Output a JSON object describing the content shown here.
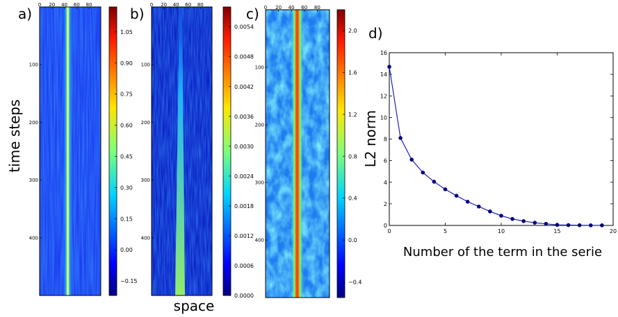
{
  "panels": [
    {
      "label": "a)",
      "ylabel": "time steps",
      "xlabel": "",
      "xticks": [
        "0",
        "20",
        "40",
        "60",
        "80"
      ],
      "yticks": [
        "100",
        "200",
        "300",
        "400"
      ],
      "colorbar_ticks": [
        "1.05",
        "0.90",
        "0.75",
        "0.60",
        "0.45",
        "0.30",
        "0.15",
        "0.00",
        "−0.15"
      ]
    },
    {
      "label": "b)",
      "ylabel": "",
      "xlabel": "space",
      "xticks": [
        "0",
        "20",
        "40",
        "60",
        "80"
      ],
      "yticks": [
        "100",
        "200",
        "300",
        "400"
      ],
      "colorbar_ticks": [
        "0.0054",
        "0.0048",
        "0.0042",
        "0.0036",
        "0.0030",
        "0.0024",
        "0.0018",
        "0.0012",
        "0.0006",
        "0.0000"
      ]
    },
    {
      "label": "c)",
      "ylabel": "",
      "xlabel": "",
      "xticks": [
        "0",
        "20",
        "40",
        "60",
        "80"
      ],
      "yticks": [
        "100",
        "200",
        "300",
        "400"
      ],
      "colorbar_ticks": [
        "2.0",
        "1.6",
        "1.2",
        "0.8",
        "0.4",
        "0.0",
        "−0.4"
      ]
    }
  ],
  "chart_data": [
    {
      "type": "heatmap",
      "label": "a)",
      "ylabel": "time steps",
      "x_range": [
        0,
        99
      ],
      "y_range": [
        0,
        500
      ],
      "colorbar_range": [
        -0.22,
        1.17
      ],
      "colormap": "jet",
      "feature": "bright vertical line near x = 47"
    },
    {
      "type": "heatmap",
      "label": "b)",
      "xlabel": "space",
      "x_range": [
        0,
        99
      ],
      "y_range": [
        0,
        500
      ],
      "colorbar_range": [
        0.0,
        0.0058
      ],
      "colormap": "jet",
      "feature": "vertical line near x = 45, growing with time"
    },
    {
      "type": "heatmap",
      "label": "c)",
      "x_range": [
        0,
        99
      ],
      "y_range": [
        0,
        500
      ],
      "colorbar_range": [
        -0.55,
        2.2
      ],
      "colormap": "jet",
      "feature": "strong vertical line near x = 47"
    },
    {
      "type": "line",
      "label": "d)",
      "xlabel": "Number of the term in the serie",
      "ylabel": "L2 norm",
      "xlim": [
        0,
        20
      ],
      "ylim": [
        0,
        16
      ],
      "xticks": [
        "0",
        "5",
        "10",
        "15",
        "20"
      ],
      "yticks": [
        "0",
        "2",
        "4",
        "6",
        "8",
        "10",
        "12",
        "14",
        "16"
      ],
      "color": "#1f1fb4",
      "marker_color": "#000080",
      "x": [
        0,
        1,
        2,
        3,
        4,
        5,
        6,
        7,
        8,
        9,
        10,
        11,
        12,
        13,
        14,
        15,
        16,
        17,
        18,
        19
      ],
      "y": [
        14.7,
        8.1,
        6.1,
        4.9,
        4.05,
        3.35,
        2.75,
        2.2,
        1.75,
        1.3,
        0.9,
        0.6,
        0.4,
        0.25,
        0.15,
        0.05,
        0.03,
        0.02,
        0.01,
        0.01
      ]
    }
  ]
}
